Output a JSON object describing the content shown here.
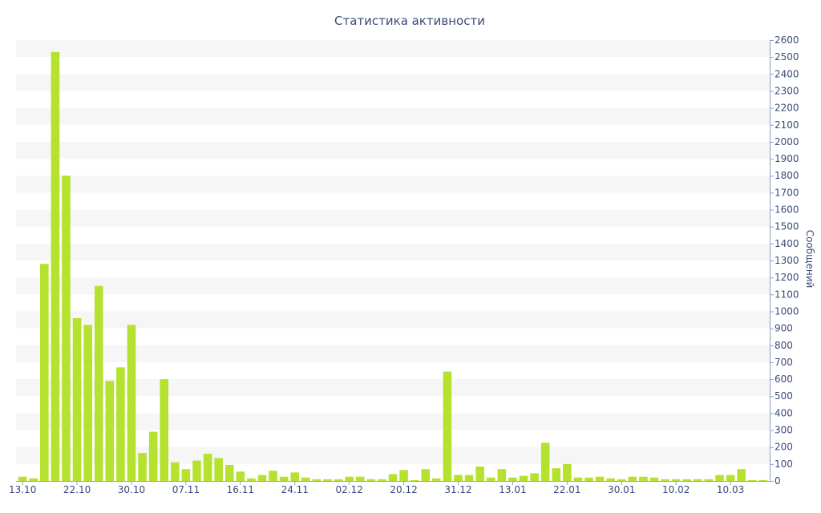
{
  "chart_data": {
    "type": "bar",
    "title": "Статистика активности",
    "ylabel": "Сообщений",
    "xlabel": "",
    "ylim": [
      0,
      2600
    ],
    "ytick_step": 100,
    "y_axis_position": "right",
    "grid": "horizontal bands",
    "bar_color": "#b5e22f",
    "band_color": "#f6f6f6",
    "text_color": "#3b4a7a",
    "axis_color": "#8aa0c8",
    "x_tick_labels": [
      {
        "label": "13.10",
        "at": 0
      },
      {
        "label": "22.10",
        "at": 5
      },
      {
        "label": "30.10",
        "at": 10
      },
      {
        "label": "07.11",
        "at": 15
      },
      {
        "label": "16.11",
        "at": 20
      },
      {
        "label": "24.11",
        "at": 25
      },
      {
        "label": "02.12",
        "at": 30
      },
      {
        "label": "20.12",
        "at": 35
      },
      {
        "label": "31.12",
        "at": 40
      },
      {
        "label": "13.01",
        "at": 45
      },
      {
        "label": "22.01",
        "at": 50
      },
      {
        "label": "30.01",
        "at": 55
      },
      {
        "label": "10.02",
        "at": 60
      },
      {
        "label": "10.03",
        "at": 65
      }
    ],
    "values": [
      25,
      15,
      1280,
      2530,
      1800,
      960,
      920,
      1150,
      590,
      670,
      920,
      165,
      290,
      600,
      110,
      70,
      120,
      160,
      135,
      95,
      55,
      15,
      35,
      60,
      25,
      50,
      20,
      10,
      10,
      10,
      25,
      25,
      10,
      10,
      40,
      65,
      5,
      70,
      15,
      645,
      35,
      35,
      85,
      20,
      70,
      20,
      30,
      45,
      225,
      75,
      100,
      20,
      20,
      25,
      15,
      10,
      25,
      25,
      20,
      10,
      10,
      10,
      10,
      10,
      35,
      35,
      70,
      5,
      5
    ]
  }
}
